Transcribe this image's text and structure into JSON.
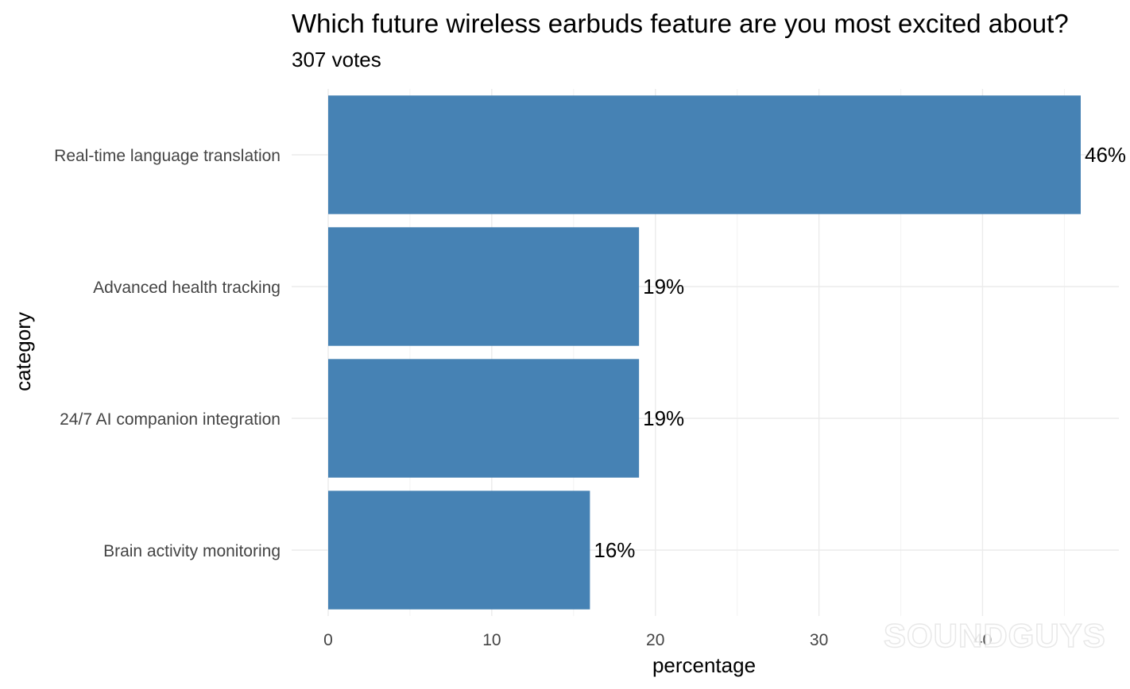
{
  "chart_data": {
    "type": "bar",
    "orientation": "horizontal",
    "title": "Which future wireless earbuds feature are you most excited about?",
    "subtitle": "307 votes",
    "xlabel": "percentage",
    "ylabel": "category",
    "xlim": [
      0,
      46
    ],
    "xticks": [
      0,
      10,
      20,
      30,
      40
    ],
    "grid": true,
    "bar_color": "#4682b4",
    "categories": [
      "Real-time language translation",
      "Advanced health tracking",
      "24/7 AI companion integration",
      "Brain activity monitoring"
    ],
    "values": [
      46,
      19,
      19,
      16
    ],
    "data_labels": [
      "46%",
      "19%",
      "19%",
      "16%"
    ]
  },
  "watermark": {
    "text": "SOUNDGUYS"
  }
}
